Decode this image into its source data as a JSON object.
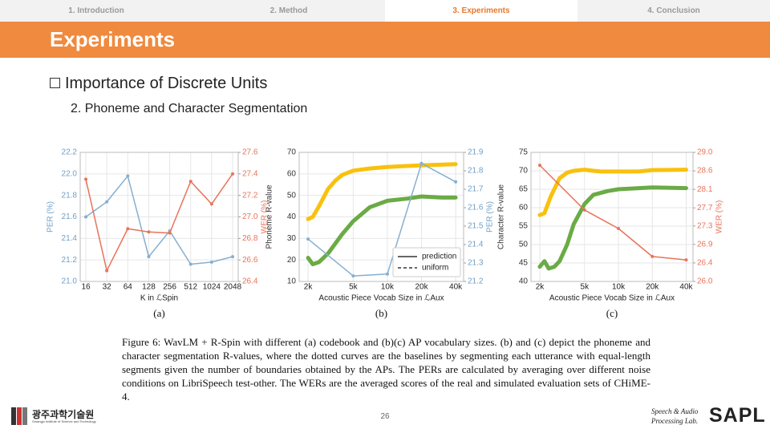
{
  "nav": [
    "1. Introduction",
    "2. Method",
    "3. Experiments",
    "4. Conclusion"
  ],
  "nav_active": 2,
  "header": {
    "title": "Experiments"
  },
  "bullet": "Importance of Discrete Units",
  "subbullet": "2. Phoneme and Character Segmentation",
  "chart_data": [
    {
      "type": "line",
      "caption": "(a)",
      "xlabel": "K in ℒSpin",
      "ylabel": "PER (%)",
      "y2label": "WER (%)",
      "ycolor": "#6f9fc6",
      "y2color": "#e8735a",
      "grid": true,
      "categories": [
        "16",
        "32",
        "64",
        "128",
        "256",
        "512",
        "1024",
        "2048"
      ],
      "ylim": [
        21.0,
        22.2
      ],
      "yticks": [
        {
          "value": 21.0,
          "label": "21.0"
        },
        21.2,
        21.4,
        21.6,
        21.8,
        {
          "value": 22.0,
          "label": "22.0"
        },
        22.2
      ],
      "y2lim": [
        26.4,
        27.6
      ],
      "y2ticks": [
        26.4,
        26.6,
        26.8,
        {
          "value": 27.0,
          "label": "27.0"
        },
        27.2,
        27.4,
        27.6
      ],
      "series": [
        {
          "color": "#86afd0",
          "marker": true,
          "values": [
            21.6,
            21.74,
            21.98,
            21.23,
            21.47,
            21.16,
            21.18,
            21.23
          ]
        },
        {
          "color": "#e8735a",
          "marker": true,
          "axis": "y2",
          "values": [
            27.35,
            26.5,
            26.89,
            26.86,
            26.85,
            27.33,
            27.12,
            27.4
          ]
        }
      ]
    },
    {
      "type": "line",
      "caption": "(b)",
      "xlabel": "Acoustic Piece Vocab Size in ℒAux",
      "ylabel": "Phoneme R-value",
      "y2label": "PER (%)",
      "ycolor": "#333333",
      "y2color": "#6f9fc6",
      "grid": true,
      "xscale": "log",
      "xlim": [
        1670,
        47000
      ],
      "xticks": [
        {
          "value": 2000,
          "label": "2k"
        },
        {
          "value": 5000,
          "label": "5k"
        },
        {
          "value": 10000,
          "label": "10k"
        },
        {
          "value": 20000,
          "label": "20k"
        },
        {
          "value": 40000,
          "label": "40k"
        }
      ],
      "ylim": [
        10,
        70
      ],
      "yticks": [
        10,
        20,
        30,
        40,
        50,
        60,
        70
      ],
      "y2lim": [
        21.2,
        21.9
      ],
      "y2ticks": [
        21.2,
        21.3,
        21.4,
        21.5,
        21.6,
        21.7,
        21.8,
        21.9
      ],
      "legend": {
        "position": "lower right",
        "entries": [
          {
            "name": "prediction",
            "dash": "solid"
          },
          {
            "name": "uniform",
            "dash": "dashed"
          }
        ]
      },
      "series": [
        {
          "color": "#f9c10e",
          "width": 5,
          "x": [
            2000,
            2200,
            2500,
            3000,
            3500,
            4000,
            5000,
            7000,
            10000,
            20000,
            40000
          ],
          "values": [
            39,
            40,
            45,
            53,
            57,
            59.5,
            61.5,
            62.5,
            63.2,
            64,
            64.5
          ]
        },
        {
          "color": "#6aab45",
          "width": 5,
          "x": [
            2000,
            2200,
            2500,
            3000,
            4000,
            5000,
            7000,
            10000,
            15000,
            20000,
            30000,
            40000
          ],
          "values": [
            21,
            18,
            19,
            23,
            32,
            38,
            44.5,
            47.5,
            48.5,
            49.5,
            49,
            49
          ]
        },
        {
          "color": "#86afd0",
          "marker": true,
          "axis": "y2",
          "x": [
            2000,
            5000,
            10000,
            20000,
            40000
          ],
          "values": [
            21.43,
            21.23,
            21.24,
            21.84,
            21.74
          ]
        }
      ]
    },
    {
      "type": "line",
      "caption": "(c)",
      "xlabel": "Acoustic Piece Vocab Size in ℒAux",
      "ylabel": "Character R-value",
      "y2label": "WER (%)",
      "ycolor": "#333333",
      "y2color": "#e8735a",
      "grid": true,
      "xscale": "log",
      "xlim": [
        1670,
        46000
      ],
      "xticks": [
        {
          "value": 2000,
          "label": "2k"
        },
        {
          "value": 5000,
          "label": "5k"
        },
        {
          "value": 10000,
          "label": "10k"
        },
        {
          "value": 20000,
          "label": "20k"
        },
        {
          "value": 40000,
          "label": "40k"
        }
      ],
      "ylim": [
        40,
        75
      ],
      "yticks": [
        40,
        45,
        50,
        55,
        60,
        65,
        70,
        75
      ],
      "y2lim": [
        26.0,
        29.0
      ],
      "y2ticks": [
        {
          "value": 26.0,
          "label": "26.0"
        },
        {
          "value": 26.43,
          "label": "26.4"
        },
        {
          "value": 26.86,
          "label": "26.9"
        },
        {
          "value": 27.29,
          "label": "27.3"
        },
        {
          "value": 27.71,
          "label": "27.7"
        },
        {
          "value": 28.14,
          "label": "28.1"
        },
        {
          "value": 28.57,
          "label": "28.6"
        },
        {
          "value": 29.0,
          "label": "29.0"
        }
      ],
      "series": [
        {
          "color": "#f9c10e",
          "width": 5,
          "x": [
            2000,
            2200,
            2500,
            3000,
            3500,
            4000,
            5000,
            6000,
            7000,
            10000,
            15000,
            20000,
            40000
          ],
          "values": [
            58,
            58.5,
            63,
            68,
            69.5,
            70,
            70.3,
            70,
            69.8,
            69.8,
            69.8,
            70.2,
            70.3
          ]
        },
        {
          "color": "#6aab45",
          "width": 5,
          "x": [
            2000,
            2200,
            2400,
            2700,
            3000,
            3500,
            4000,
            5000,
            6000,
            8000,
            10000,
            20000,
            40000
          ],
          "values": [
            44,
            45.5,
            43.5,
            44,
            45.5,
            50,
            55.5,
            61,
            63.5,
            64.5,
            65,
            65.5,
            65.3
          ]
        },
        {
          "color": "#e8735a",
          "marker": true,
          "axis": "y2",
          "x": [
            2000,
            5000,
            10000,
            20000,
            40000
          ],
          "values": [
            28.7,
            27.66,
            27.23,
            26.58,
            26.5
          ]
        }
      ]
    }
  ],
  "figure_caption": "Figure 6: WavLM + R-Spin with different (a) codebook and (b)(c) AP vocabulary sizes. (b) and (c) depict the phoneme and character segmentation R-values, where the dotted curves are the baselines by segmenting each utterance with equal-length segments given the number of boundaries obtained by the APs. The PERs are calculated by averaging over different noise conditions on LibriSpeech test-other. The WERs are the averaged scores of the real and simulated evaluation sets of CHiME-4.",
  "footer": {
    "page": "26",
    "institution": "광주과학기술원",
    "institution_en": "Gwangju Institute of Science and Technology",
    "lab": "Speech & Audio Processing Lab.",
    "lab_logo": "SAPL"
  }
}
